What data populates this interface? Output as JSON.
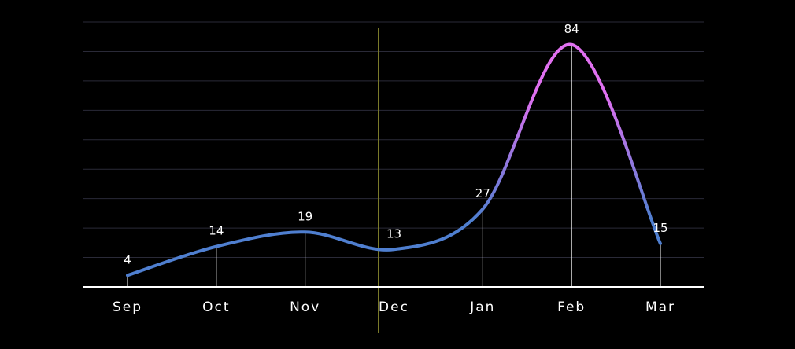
{
  "chart_data": {
    "type": "line",
    "smooth": true,
    "categories": [
      "Sep",
      "Oct",
      "Nov",
      "Dec",
      "Jan",
      "Feb",
      "Mar"
    ],
    "series": [
      {
        "values": [
          4,
          14,
          19,
          13,
          27,
          84,
          15
        ]
      }
    ],
    "data_labels": [
      "4",
      "14",
      "19",
      "13",
      "27",
      "84",
      "15"
    ],
    "ylim": [
      0,
      90
    ],
    "grid": true,
    "highlight_category": "Dec",
    "colors": {
      "background": "#000000",
      "gridline": "#2a2a38",
      "axis": "#ffffff",
      "drop_line": "#ffffff",
      "highlight_line": "#7a7a2a",
      "gradient_pink": "#e070f0",
      "gradient_blue": "#4f7fd0"
    }
  }
}
